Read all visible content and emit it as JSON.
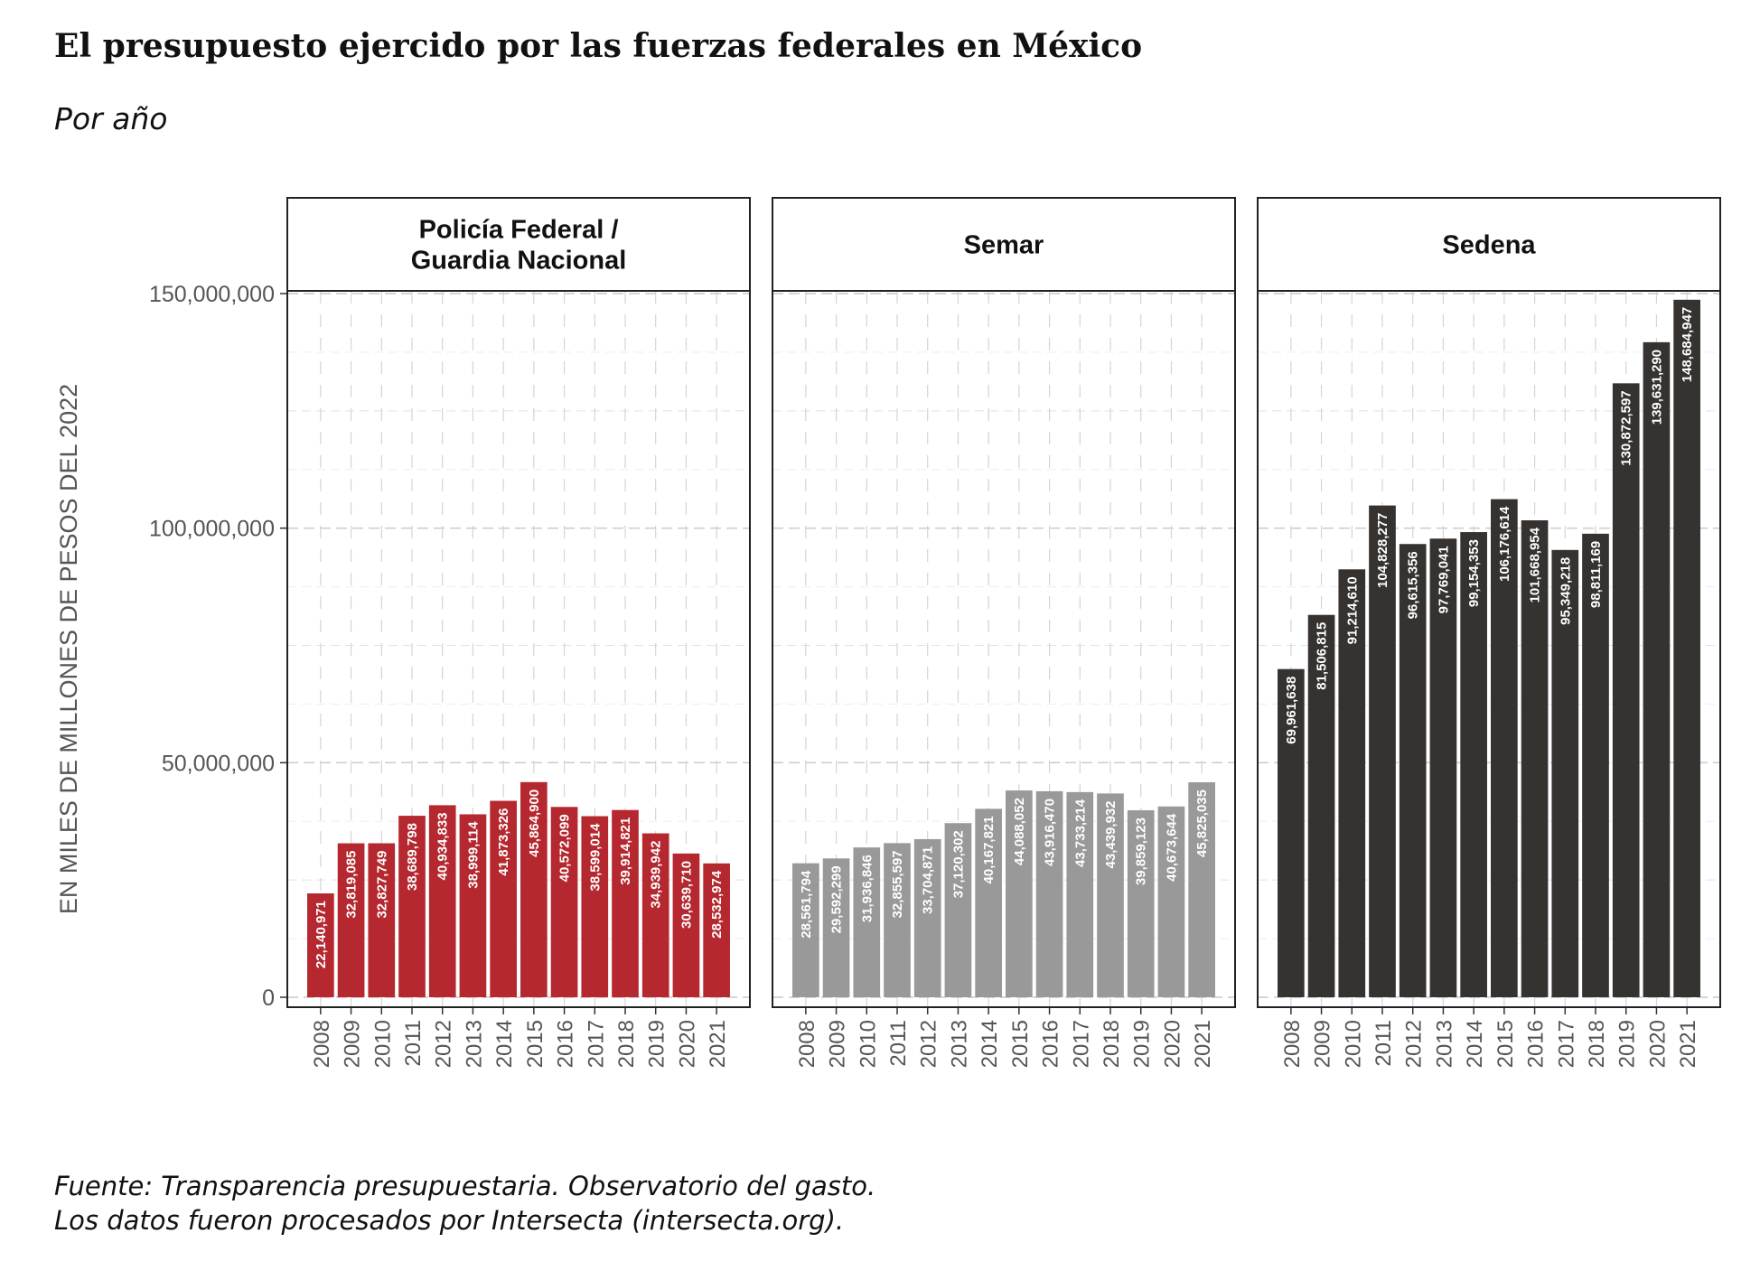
{
  "title": "El presupuesto ejercido por las fuerzas federales en México",
  "subtitle": "Por año",
  "caption": [
    "Fuente: Transparencia presupuestaria. Observatorio del gasto.",
    "Los datos fueron procesados por Intersecta (intersecta.org)."
  ],
  "chart_data": {
    "type": "bar",
    "ylabel": "EN MILES DE MILLONES DE PESOS DEL 2022",
    "ylim": [
      0,
      150000000
    ],
    "yticks": [
      {
        "value": 0,
        "label": "0"
      },
      {
        "value": 50000000,
        "label": "50,000,000"
      },
      {
        "value": 100000000,
        "label": "100,000,000"
      },
      {
        "value": 150000000,
        "label": "150,000,000"
      }
    ],
    "grid": true,
    "categories": [
      "2008",
      "2009",
      "2010",
      "2011",
      "2012",
      "2013",
      "2014",
      "2015",
      "2016",
      "2017",
      "2018",
      "2019",
      "2020",
      "2021"
    ],
    "panels": [
      {
        "title": [
          "Policía Federal /",
          "Guardia Nacional"
        ],
        "color": "#b5282f",
        "values": [
          22140971,
          32819085,
          32827749,
          38689798,
          40934833,
          38999114,
          41873326,
          45864900,
          40572099,
          38599014,
          39914821,
          34939942,
          30639710,
          28532974
        ],
        "labels": [
          "22,140,971",
          "32,819,085",
          "32,827,749",
          "38,689,798",
          "40,934,833",
          "38,999,114",
          "41,873,326",
          "45,864,900",
          "40,572,099",
          "38,599,014",
          "39,914,821",
          "34,939,942",
          "30,639,710",
          "28,532,974"
        ]
      },
      {
        "title": [
          "Semar"
        ],
        "color": "#999999",
        "values": [
          28561794,
          29592299,
          31936846,
          32855597,
          33704871,
          37120302,
          40167821,
          44088052,
          43916470,
          43733214,
          43439932,
          39859123,
          40673644,
          45825035
        ],
        "labels": [
          "28,561,794",
          "29,592,299",
          "31,936,846",
          "32,855,597",
          "33,704,871",
          "37,120,302",
          "40,167,821",
          "44,088,052",
          "43,916,470",
          "43,733,214",
          "43,439,932",
          "39,859,123",
          "40,673,644",
          "45,825,035"
        ]
      },
      {
        "title": [
          "Sedena"
        ],
        "color": "#353230",
        "values": [
          69961638,
          81506815,
          91214610,
          104828277,
          96615356,
          97769041,
          99154353,
          106176614,
          101668954,
          95349218,
          98811169,
          130872597,
          139631290,
          148684947
        ],
        "labels": [
          "69,961,638",
          "81,506,815",
          "91,214,610",
          "104,828,277",
          "96,615,356",
          "97,769,041",
          "99,154,353",
          "106,176,614",
          "101,668,954",
          "95,349,218",
          "98,811,169",
          "130,872,597",
          "139,631,290",
          "148,684,947"
        ]
      }
    ]
  }
}
